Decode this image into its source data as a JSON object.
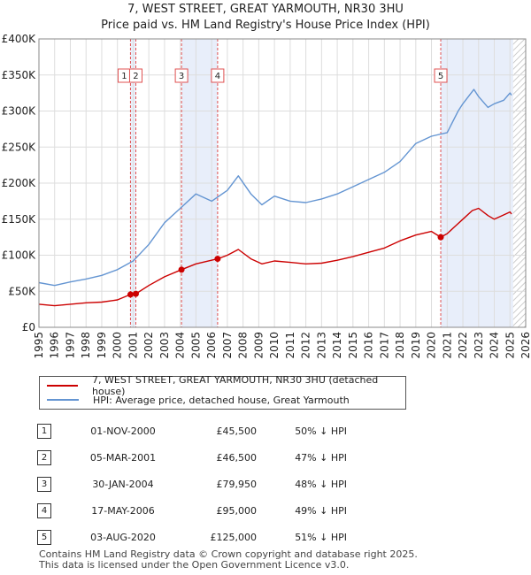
{
  "title": "7, WEST STREET, GREAT YARMOUTH, NR30 3HU",
  "subtitle": "Price paid vs. HM Land Registry's House Price Index (HPI)",
  "colors": {
    "property": "#cc0000",
    "hpi": "#6495d2",
    "shade": "#e8eefa",
    "vline": "#e05050"
  },
  "chart_data": {
    "type": "line",
    "xlim": [
      1995,
      2026
    ],
    "ylim": [
      0,
      400000
    ],
    "yticks": [
      0,
      50000,
      100000,
      150000,
      200000,
      250000,
      300000,
      350000,
      400000
    ],
    "ytick_labels": [
      "£0",
      "£50K",
      "£100K",
      "£150K",
      "£200K",
      "£250K",
      "£300K",
      "£350K",
      "£400K"
    ],
    "xticks": [
      "1995",
      "1996",
      "1997",
      "1998",
      "1999",
      "2000",
      "2001",
      "2002",
      "2003",
      "2004",
      "2005",
      "2006",
      "2007",
      "2008",
      "2009",
      "2010",
      "2011",
      "2012",
      "2013",
      "2014",
      "2015",
      "2016",
      "2017",
      "2018",
      "2019",
      "2020",
      "2021",
      "2022",
      "2023",
      "2024",
      "2025",
      "2026"
    ],
    "shaded_ranges": [
      [
        2000.83,
        2001.17
      ],
      [
        2004.08,
        2006.38
      ],
      [
        2020.59,
        2025.2
      ]
    ],
    "hatch_from": 2025.2,
    "series": [
      {
        "name": "7, WEST STREET, GREAT YARMOUTH, NR30 3HU (detached house)",
        "x": [
          1995,
          1996,
          1997,
          1998,
          1999,
          2000,
          2000.83,
          2001.17,
          2002,
          2003,
          2004.08,
          2005,
          2006.38,
          2007,
          2007.7,
          2008.5,
          2009.2,
          2010,
          2011,
          2012,
          2013,
          2014,
          2015,
          2016,
          2017,
          2018,
          2019,
          2020,
          2020.59,
          2021,
          2021.5,
          2022,
          2022.6,
          2023,
          2023.6,
          2024,
          2024.5,
          2025,
          2025.1
        ],
        "values": [
          32000,
          30000,
          32000,
          34000,
          35000,
          38000,
          45500,
          46500,
          58000,
          70000,
          79950,
          88000,
          95000,
          100000,
          108000,
          95000,
          88000,
          92000,
          90000,
          88000,
          89000,
          93000,
          98000,
          104000,
          110000,
          120000,
          128000,
          133000,
          125000,
          130000,
          140000,
          150000,
          162000,
          165000,
          155000,
          150000,
          155000,
          160000,
          157000
        ]
      },
      {
        "name": "HPI: Average price, detached house, Great Yarmouth",
        "x": [
          1995,
          1996,
          1997,
          1998,
          1999,
          2000,
          2001,
          2002,
          2003,
          2004,
          2005,
          2006,
          2007,
          2007.7,
          2008.5,
          2009.2,
          2010,
          2011,
          2012,
          2013,
          2014,
          2015,
          2016,
          2017,
          2018,
          2019,
          2020,
          2021,
          2021.7,
          2022,
          2022.7,
          2023,
          2023.6,
          2024,
          2024.6,
          2025,
          2025.1
        ],
        "values": [
          62000,
          58000,
          63000,
          67000,
          72000,
          80000,
          92000,
          115000,
          145000,
          165000,
          185000,
          175000,
          190000,
          210000,
          185000,
          170000,
          182000,
          175000,
          173000,
          178000,
          185000,
          195000,
          205000,
          215000,
          230000,
          255000,
          265000,
          270000,
          300000,
          310000,
          330000,
          320000,
          305000,
          310000,
          315000,
          325000,
          322000
        ]
      }
    ],
    "sales": [
      {
        "num": "1",
        "x": 2000.83,
        "value": 45500
      },
      {
        "num": "2",
        "x": 2001.17,
        "value": 46500
      },
      {
        "num": "3",
        "x": 2004.08,
        "value": 79950
      },
      {
        "num": "4",
        "x": 2006.38,
        "value": 95000
      },
      {
        "num": "5",
        "x": 2020.59,
        "value": 125000
      }
    ]
  },
  "legend": {
    "property": "7, WEST STREET, GREAT YARMOUTH, NR30 3HU (detached house)",
    "hpi": "HPI: Average price, detached house, Great Yarmouth"
  },
  "transactions": [
    {
      "num": "1",
      "date": "01-NOV-2000",
      "price": "£45,500",
      "hpi": "50% ↓ HPI"
    },
    {
      "num": "2",
      "date": "05-MAR-2001",
      "price": "£46,500",
      "hpi": "47% ↓ HPI"
    },
    {
      "num": "3",
      "date": "30-JAN-2004",
      "price": "£79,950",
      "hpi": "48% ↓ HPI"
    },
    {
      "num": "4",
      "date": "17-MAY-2006",
      "price": "£95,000",
      "hpi": "49% ↓ HPI"
    },
    {
      "num": "5",
      "date": "03-AUG-2020",
      "price": "£125,000",
      "hpi": "51% ↓ HPI"
    }
  ],
  "footer": {
    "line1": "Contains HM Land Registry data © Crown copyright and database right 2025.",
    "line2": "This data is licensed under the Open Government Licence v3.0."
  }
}
